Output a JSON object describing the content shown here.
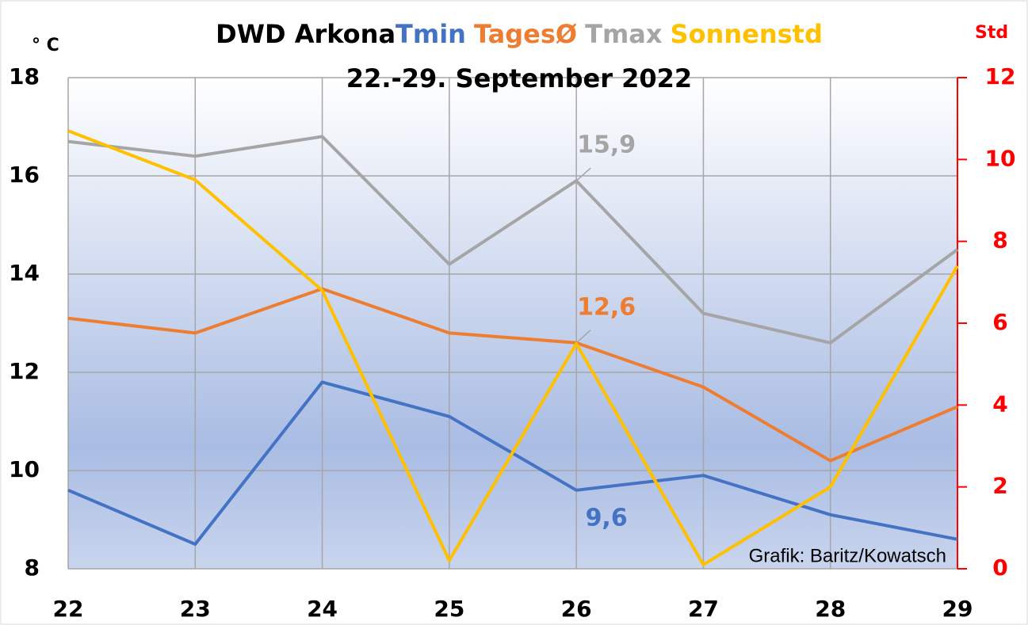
{
  "chart_data": {
    "type": "line",
    "title": "DWD Arkona",
    "subtitle": "22.-29. September 2022",
    "y_label": "° C",
    "y2_label": "Std",
    "annotation": "Grafik: Baritz/Kowatsch",
    "categories": [
      "22",
      "23",
      "24",
      "25",
      "26",
      "27",
      "28",
      "29"
    ],
    "ylim": [
      8,
      18
    ],
    "yticks": [
      8,
      10,
      12,
      14,
      16,
      18
    ],
    "y2lim": [
      0,
      12
    ],
    "y2ticks": [
      0,
      2,
      4,
      6,
      8,
      10,
      12
    ],
    "y2color": "#ff0000",
    "grid": true,
    "series": [
      {
        "name": "Tmin",
        "color": "#4472c4",
        "values": [
          9.6,
          8.5,
          11.8,
          11.1,
          9.6,
          9.9,
          9.1,
          8.6
        ],
        "value_labels": [
          null,
          null,
          null,
          null,
          "9,6",
          null,
          null,
          null
        ]
      },
      {
        "name": "TagesØ",
        "color": "#ed7d31",
        "values": [
          13.1,
          12.8,
          13.7,
          12.8,
          12.6,
          11.7,
          10.2,
          11.3
        ],
        "value_labels": [
          null,
          null,
          null,
          null,
          "12,6",
          null,
          null,
          null
        ]
      },
      {
        "name": "Tmax",
        "color": "#a5a5a5",
        "values": [
          16.7,
          16.4,
          16.8,
          14.2,
          15.9,
          13.2,
          12.6,
          14.5
        ],
        "value_labels": [
          null,
          null,
          null,
          null,
          "15,9",
          null,
          null,
          null
        ]
      },
      {
        "name": "Sonnenstd",
        "color": "#ffc000",
        "axis": "y2",
        "values": [
          10.7,
          9.5,
          6.8,
          0.2,
          5.5,
          0.1,
          2.0,
          7.4
        ]
      }
    ]
  }
}
